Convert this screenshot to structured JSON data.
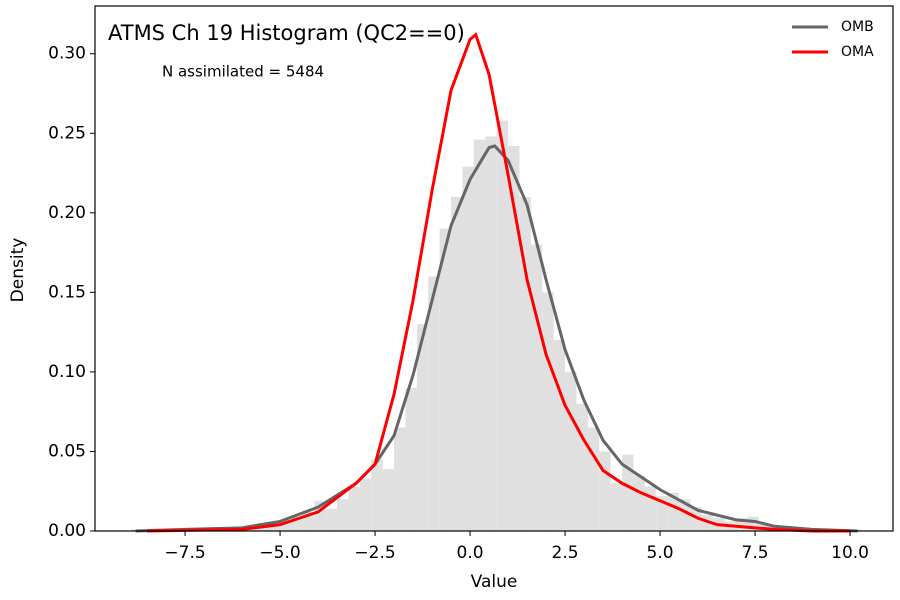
{
  "chart_data": {
    "type": "histogram",
    "title": "ATMS Ch 19 Histogram (QC2==0)",
    "annotation": "N assimilated = 5484",
    "xlabel": "Value",
    "ylabel": "Density",
    "xlim": [
      -9.87,
      11.13
    ],
    "ylim": [
      0,
      0.33
    ],
    "xticks": [
      {
        "value": -7.5,
        "label": "−7.5"
      },
      {
        "value": -5,
        "label": "−5.0"
      },
      {
        "value": -2.5,
        "label": "−2.5"
      },
      {
        "value": 0,
        "label": "0.0"
      },
      {
        "value": 2.5,
        "label": "2.5"
      },
      {
        "value": 5,
        "label": "5.0"
      },
      {
        "value": 7.5,
        "label": "7.5"
      },
      {
        "value": 10,
        "label": "10.0"
      }
    ],
    "yticks": [
      {
        "value": 0,
        "label": "0.00"
      },
      {
        "value": 0.05,
        "label": "0.05"
      },
      {
        "value": 0.1,
        "label": "0.10"
      },
      {
        "value": 0.15,
        "label": "0.15"
      },
      {
        "value": 0.2,
        "label": "0.20"
      },
      {
        "value": 0.25,
        "label": "0.25"
      },
      {
        "value": 0.3,
        "label": "0.30"
      }
    ],
    "legend": "upper right",
    "hist_color": "#e0e0e0",
    "bins": [
      -8.9,
      -8.6,
      -8.3,
      -8.0,
      -7.7,
      -7.4,
      -7.1,
      -6.8,
      -6.5,
      -6.2,
      -5.9,
      -5.6,
      -5.3,
      -5.0,
      -4.7,
      -4.4,
      -4.1,
      -3.8,
      -3.5,
      -3.2,
      -2.9,
      -2.6,
      -2.3,
      -2.0,
      -1.7,
      -1.4,
      -1.1,
      -0.8,
      -0.5,
      -0.2,
      0.1,
      0.4,
      0.7,
      1.0,
      1.3,
      1.6,
      1.9,
      2.2,
      2.5,
      2.8,
      3.1,
      3.4,
      3.7,
      4.0,
      4.3,
      4.6,
      4.9,
      5.2,
      5.5,
      5.8,
      6.1,
      6.4,
      6.7,
      7.0,
      7.3,
      7.6,
      7.9,
      8.2,
      8.5,
      8.8,
      9.1,
      9.4,
      9.7,
      10.0,
      10.3
    ],
    "values": [
      0.001,
      0,
      0.001,
      0.001,
      0.001,
      0.001,
      0.002,
      0.002,
      0.002,
      0.003,
      0.004,
      0.005,
      0.006,
      0.007,
      0.009,
      0.012,
      0.019,
      0.014,
      0.02,
      0.028,
      0.033,
      0.045,
      0.039,
      0.065,
      0.09,
      0.13,
      0.16,
      0.19,
      0.21,
      0.229,
      0.246,
      0.248,
      0.258,
      0.242,
      0.21,
      0.18,
      0.15,
      0.12,
      0.1,
      0.08,
      0.065,
      0.05,
      0.03,
      0.048,
      0.035,
      0.028,
      0.022,
      0.024,
      0.02,
      0.015,
      0.01,
      0.008,
      0.006,
      0.008,
      0.009,
      0.004,
      0.003,
      0.002,
      0.001,
      0.001,
      0.001,
      0,
      0.001,
      0.001
    ],
    "series": [
      {
        "name": "OMB",
        "color": "#666666",
        "x": [
          -8.8,
          -7.5,
          -6,
          -5,
          -4,
          -3,
          -2.5,
          -2,
          -1.5,
          -1,
          -0.5,
          0,
          0.5,
          0.65,
          1,
          1.5,
          2,
          2.5,
          3,
          3.5,
          4,
          5,
          6,
          7,
          7.5,
          8,
          9,
          10.2
        ],
        "values": [
          0,
          0.001,
          0.002,
          0.006,
          0.015,
          0.03,
          0.042,
          0.06,
          0.098,
          0.145,
          0.192,
          0.221,
          0.241,
          0.242,
          0.233,
          0.205,
          0.158,
          0.114,
          0.082,
          0.057,
          0.042,
          0.026,
          0.013,
          0.007,
          0.006,
          0.003,
          0.001,
          0
        ]
      },
      {
        "name": "OMA",
        "color": "#ff0000",
        "x": [
          -8.5,
          -6,
          -5,
          -4,
          -3,
          -2.5,
          -2,
          -1.5,
          -1,
          -0.5,
          0,
          0.15,
          0.5,
          1,
          1.5,
          2,
          2.5,
          3,
          3.5,
          4,
          4.5,
          5,
          5.5,
          6,
          6.5,
          7,
          7.5,
          8,
          9,
          10
        ],
        "values": [
          0,
          0.001,
          0.004,
          0.012,
          0.03,
          0.042,
          0.086,
          0.145,
          0.214,
          0.277,
          0.309,
          0.312,
          0.287,
          0.224,
          0.158,
          0.111,
          0.079,
          0.057,
          0.038,
          0.03,
          0.024,
          0.019,
          0.014,
          0.008,
          0.004,
          0.003,
          0.002,
          0.001,
          0,
          0
        ]
      }
    ]
  }
}
